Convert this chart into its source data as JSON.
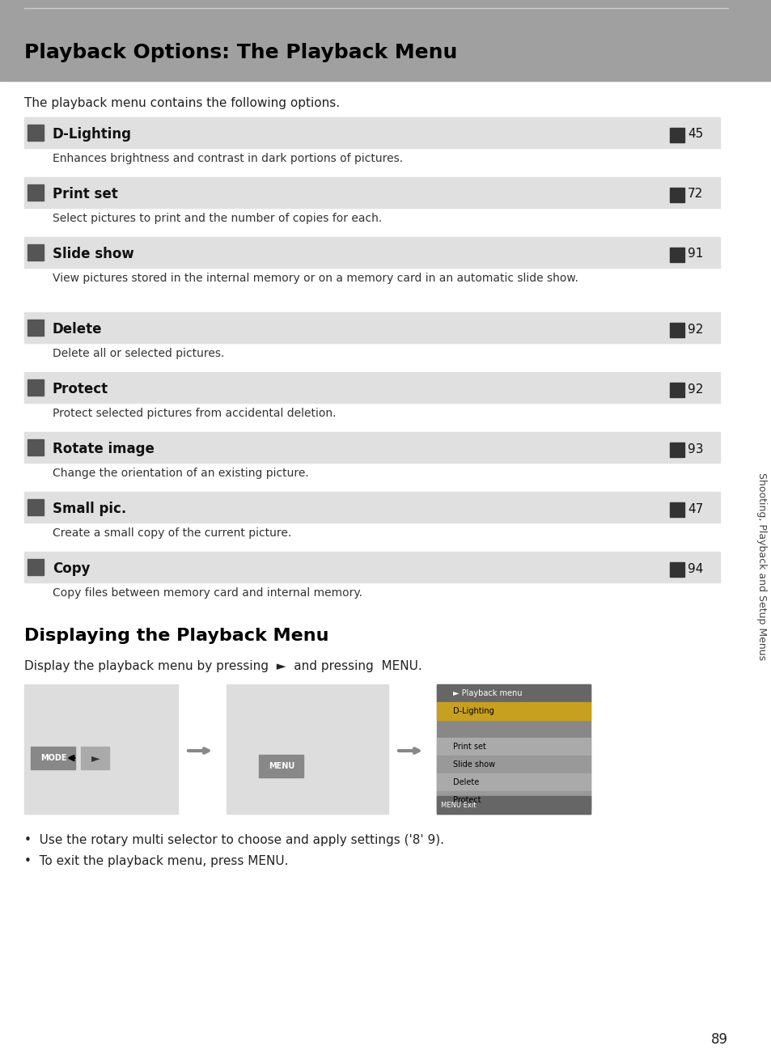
{
  "page_bg": "#ffffff",
  "header_bg": "#a0a0a0",
  "header_title": "Playback Options: The Playback Menu",
  "header_title_color": "#000000",
  "intro_text": "The playback menu contains the following options.",
  "row_bg_odd": "#e8e8e8",
  "row_bg_even": "#ffffff",
  "items": [
    {
      "name": "D-Lighting",
      "page": "45",
      "desc": "Enhances brightness and contrast in dark portions of pictures."
    },
    {
      "name": "Print set",
      "page": "72",
      "desc": "Select pictures to print and the number of copies for each."
    },
    {
      "name": "Slide show",
      "page": "91",
      "desc": "View pictures stored in the internal memory or on a memory card in an automatic\nslide show."
    },
    {
      "name": "Delete",
      "page": "92",
      "desc": "Delete all or selected pictures."
    },
    {
      "name": "Protect",
      "page": "92",
      "desc": "Protect selected pictures from accidental deletion."
    },
    {
      "name": "Rotate image",
      "page": "93",
      "desc": "Change the orientation of an existing picture."
    },
    {
      "name": "Small pic.",
      "page": "47",
      "desc": "Create a small copy of the current picture."
    },
    {
      "name": "Copy",
      "page": "94",
      "desc": "Copy files between memory card and internal memory."
    }
  ],
  "section2_title": "Displaying the Playback Menu",
  "section2_intro": "Display the playback menu by pressing ► and pressing MENU.",
  "bullet1": "Use the rotary multi selector to choose and apply settings ('8' 9).",
  "bullet2": "To exit the playback menu, press MENU.",
  "sidebar_text": "Shooting, Playback and Setup Menus",
  "page_num": "89"
}
